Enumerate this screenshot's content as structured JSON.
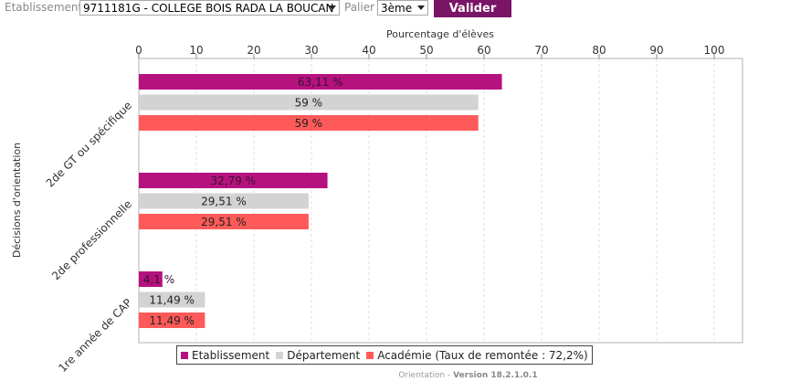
{
  "toolbar": {
    "etablissement_label": "Etablissement",
    "etablissement_value": "9711181G - COLLEGE BOIS RADA LA BOUCAN",
    "palier_label": "Palier",
    "palier_value": "3ème",
    "valider_label": "Valider"
  },
  "legend": {
    "etablissement": "Etablissement",
    "departement": "Département",
    "academie": "Académie (Taux de remontée : 72,2%)"
  },
  "footer": {
    "app": "Orientation",
    "separator": " - ",
    "version": "Version 18.2.1.0.1"
  },
  "colors": {
    "etablissement": "#b5127f",
    "departement": "#d3d3d3",
    "academie": "#ff5a5a",
    "button": "#7a1466"
  },
  "chart_data": {
    "type": "bar",
    "orientation": "horizontal",
    "xlabel": "Pourcentage d'élèves",
    "ylabel": "Décisions d'orientation",
    "xlim": [
      0,
      100
    ],
    "xticks": [
      0,
      10,
      20,
      30,
      40,
      50,
      60,
      70,
      80,
      90,
      100
    ],
    "grid": true,
    "categories": [
      "2de GT ou spécifique",
      "2de professionnelle",
      "1re année de CAP"
    ],
    "series": [
      {
        "name": "Etablissement",
        "values": [
          63.11,
          32.79,
          4.1
        ],
        "labels": [
          "63,11 %",
          "32,79 %",
          "4,1 %"
        ]
      },
      {
        "name": "Département",
        "values": [
          59,
          29.51,
          11.49
        ],
        "labels": [
          "59 %",
          "29,51 %",
          "11,49 %"
        ]
      },
      {
        "name": "Académie (Taux de remontée : 72,2%)",
        "values": [
          59,
          29.51,
          11.49
        ],
        "labels": [
          "59 %",
          "29,51 %",
          "11,49 %"
        ]
      }
    ]
  }
}
